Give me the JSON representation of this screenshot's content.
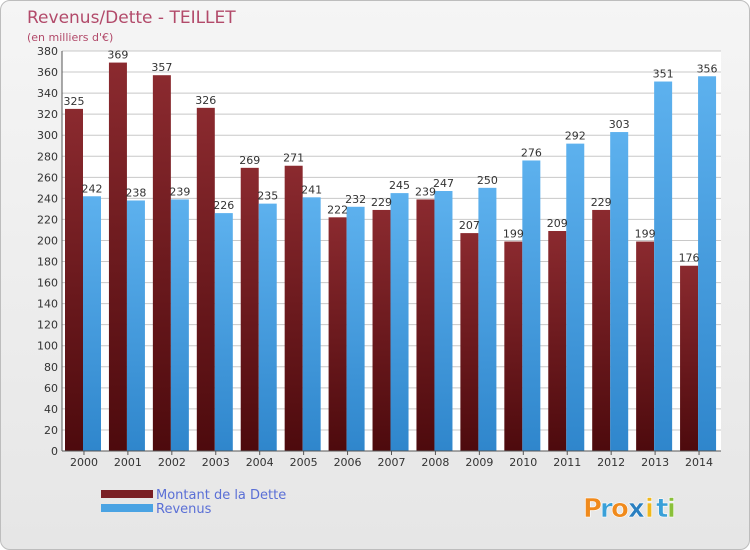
{
  "chart_data": {
    "type": "bar",
    "title": "Revenus/Dette - TEILLET",
    "subtitle": "(en milliers d'€)",
    "categories": [
      "2000",
      "2001",
      "2002",
      "2003",
      "2004",
      "2005",
      "2006",
      "2007",
      "2008",
      "2009",
      "2010",
      "2011",
      "2012",
      "2013",
      "2014"
    ],
    "series": [
      {
        "name": "Montant de la Dette",
        "color": "#7a1f24",
        "values": [
          325,
          369,
          357,
          326,
          269,
          271,
          222,
          229,
          239,
          207,
          199,
          209,
          229,
          199,
          176
        ]
      },
      {
        "name": "Revenus",
        "color": "#4aa3e3",
        "values": [
          242,
          238,
          239,
          226,
          235,
          241,
          232,
          245,
          247,
          250,
          276,
          292,
          303,
          351,
          356
        ]
      }
    ],
    "ylim": [
      0,
      380
    ],
    "ytick_step": 20,
    "grid": true,
    "legend_position": "bottom-left"
  },
  "brand": {
    "letters": [
      "P",
      "r",
      "o",
      "x",
      "i",
      "t",
      "i"
    ],
    "colors": [
      "#f08a1c",
      "#3aa0d8",
      "#f08a1c",
      "#2a7fc0",
      "#f0b81c",
      "#3aa0d8",
      "#8ac03a"
    ]
  }
}
